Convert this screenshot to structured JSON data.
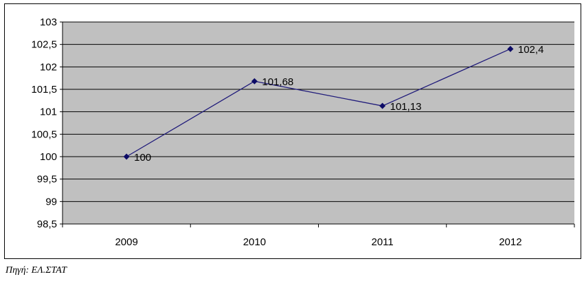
{
  "colors": {
    "plot_background": "#c0c0c0",
    "gridline": "#000000",
    "line": "#1f1a7a",
    "marker": "#0d0b66"
  },
  "chart_data": {
    "type": "line",
    "title": "",
    "xlabel": "",
    "ylabel": "",
    "categories": [
      "2009",
      "2010",
      "2011",
      "2012"
    ],
    "series": [
      {
        "values": [
          100,
          101.68,
          101.13,
          102.4
        ]
      }
    ],
    "data_labels": [
      "100",
      "101,68",
      "101,13",
      "102,4"
    ],
    "ylim": [
      98.5,
      103
    ],
    "y_ticks": [
      98.5,
      99,
      99.5,
      100,
      100.5,
      101,
      101.5,
      102,
      102.5,
      103
    ],
    "y_tick_labels": [
      "98,5",
      "99",
      "99,5",
      "100",
      "100,5",
      "101",
      "101,5",
      "102",
      "102,5",
      "103"
    ],
    "grid": "horizontal",
    "legend": "none",
    "marker": "diamond"
  },
  "source_note": "Πηγή: ΕΛ.ΣΤΑΤ"
}
